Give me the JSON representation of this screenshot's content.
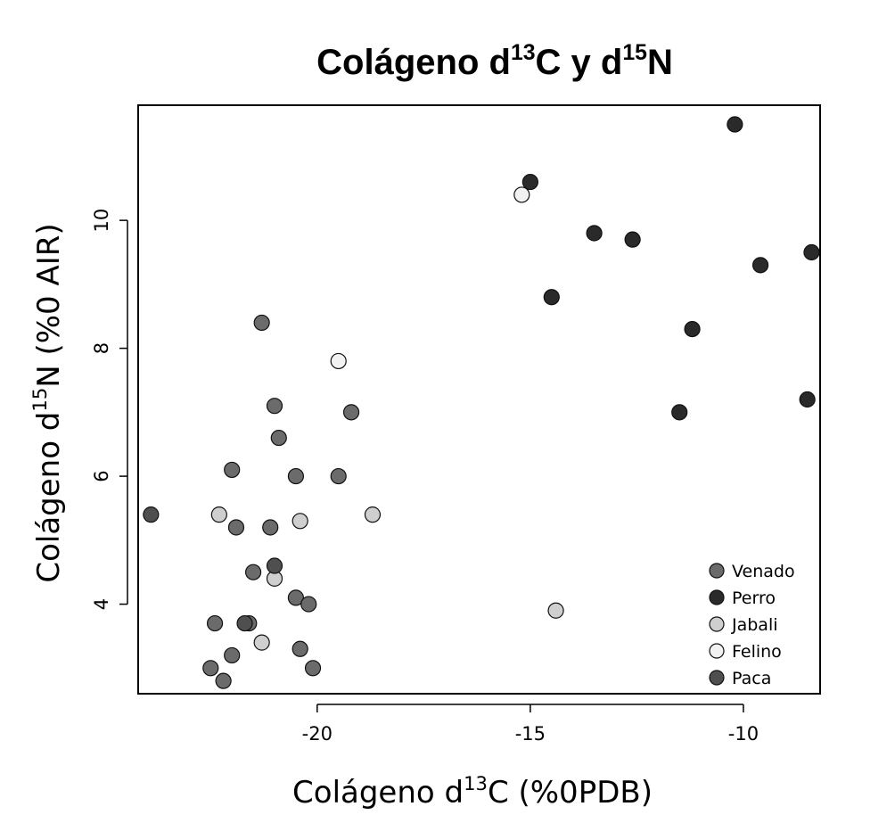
{
  "chart_data": {
    "type": "scatter",
    "title": {
      "prefix": "Colágeno d",
      "sup1": "13",
      "middle": "C y d",
      "sup2": "15",
      "suffix": "N"
    },
    "xlabel": {
      "prefix": "Colágeno d",
      "sup": "13",
      "suffix": "C (%0PDB)"
    },
    "ylabel": {
      "prefix": "Colágeno d",
      "sup": "15",
      "suffix": "N (%0 AIR)"
    },
    "xlim": [
      -24.2,
      -8.2
    ],
    "ylim": [
      2.6,
      11.8
    ],
    "x_ticks": [
      -20,
      -15,
      -10
    ],
    "y_ticks": [
      4,
      6,
      8,
      10
    ],
    "grid": false,
    "legend_position": "bottom-right",
    "series": [
      {
        "name": "Venado",
        "color": "#6b6b6b",
        "points": [
          [
            -21.3,
            8.4
          ],
          [
            -21.0,
            7.1
          ],
          [
            -19.2,
            7.0
          ],
          [
            -20.9,
            6.6
          ],
          [
            -22.0,
            6.1
          ],
          [
            -20.5,
            6.0
          ],
          [
            -19.5,
            6.0
          ],
          [
            -21.9,
            5.2
          ],
          [
            -21.1,
            5.2
          ],
          [
            -21.5,
            4.5
          ],
          [
            -20.5,
            4.1
          ],
          [
            -20.2,
            4.0
          ],
          [
            -22.4,
            3.7
          ],
          [
            -21.6,
            3.7
          ],
          [
            -22.0,
            3.2
          ],
          [
            -20.4,
            3.3
          ],
          [
            -22.5,
            3.0
          ],
          [
            -20.1,
            3.0
          ],
          [
            -22.2,
            2.8
          ]
        ]
      },
      {
        "name": "Perro",
        "color": "#2a2a2a",
        "points": [
          [
            -10.2,
            11.5
          ],
          [
            -15.0,
            10.6
          ],
          [
            -13.5,
            9.8
          ],
          [
            -12.6,
            9.7
          ],
          [
            -9.6,
            9.3
          ],
          [
            -8.4,
            9.5
          ],
          [
            -14.5,
            8.8
          ],
          [
            -11.2,
            8.3
          ],
          [
            -11.5,
            7.0
          ],
          [
            -8.5,
            7.2
          ]
        ]
      },
      {
        "name": "Jabali",
        "color": "#cfcfcf",
        "points": [
          [
            -22.3,
            5.4
          ],
          [
            -20.4,
            5.3
          ],
          [
            -18.7,
            5.4
          ],
          [
            -21.0,
            4.4
          ],
          [
            -21.3,
            3.4
          ],
          [
            -14.4,
            3.9
          ]
        ]
      },
      {
        "name": "Felino",
        "color": "#f2f2f2",
        "points": [
          [
            -15.2,
            10.4
          ],
          [
            -19.5,
            7.8
          ]
        ]
      },
      {
        "name": "Paca",
        "color": "#4f4f4f",
        "points": [
          [
            -23.9,
            5.4
          ],
          [
            -21.0,
            4.6
          ],
          [
            -21.7,
            3.7
          ]
        ]
      }
    ]
  }
}
